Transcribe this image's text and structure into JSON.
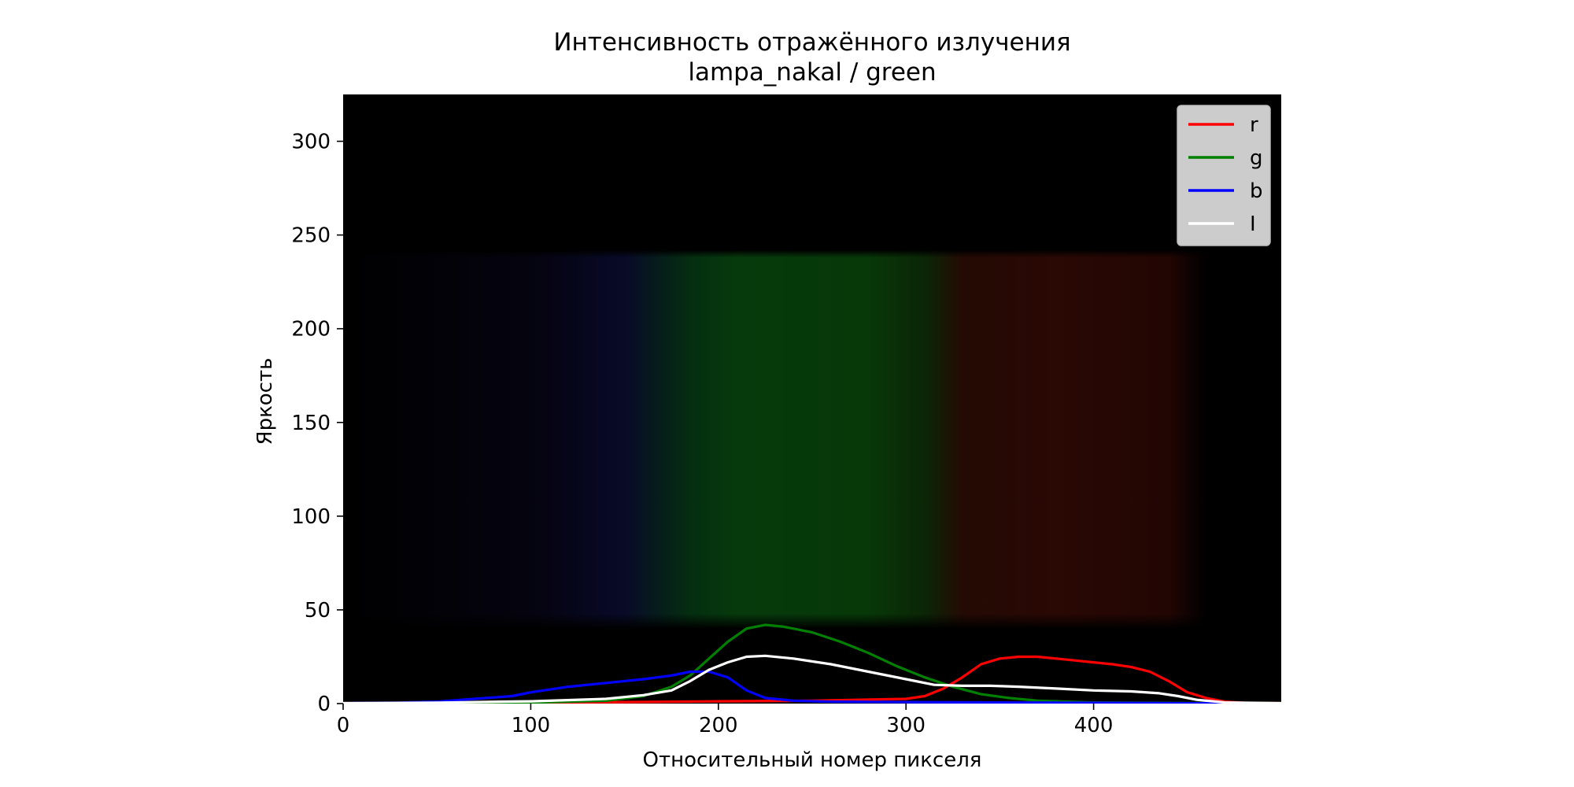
{
  "chart_data": {
    "type": "line",
    "title": "Интенсивность отражённого излучения",
    "subtitle": "lampa_nakal / green",
    "xlabel": "Относительный номер пикселя",
    "ylabel": "Яркость",
    "xlim": [
      0,
      500
    ],
    "ylim": [
      0,
      325
    ],
    "x_ticks": [
      0,
      100,
      200,
      300,
      400
    ],
    "y_ticks": [
      0,
      50,
      100,
      150,
      200,
      250,
      300
    ],
    "grid": false,
    "legend_position": "top-right",
    "background": {
      "type": "spectrum-image",
      "band_y_range": [
        40,
        242
      ],
      "color_stops": [
        {
          "x": 0,
          "color": "#000000"
        },
        {
          "x": 100,
          "color": "#05030f"
        },
        {
          "x": 150,
          "color": "#080a28"
        },
        {
          "x": 185,
          "color": "#042e10"
        },
        {
          "x": 210,
          "color": "#063a0c"
        },
        {
          "x": 280,
          "color": "#073808"
        },
        {
          "x": 310,
          "color": "#0b2606"
        },
        {
          "x": 330,
          "color": "#240a04"
        },
        {
          "x": 380,
          "color": "#2a0804"
        },
        {
          "x": 440,
          "color": "#220603"
        },
        {
          "x": 460,
          "color": "#000000"
        },
        {
          "x": 500,
          "color": "#000000"
        }
      ]
    },
    "series": [
      {
        "name": "r",
        "color": "#ff0000",
        "points": [
          [
            0,
            0.3
          ],
          [
            50,
            0.4
          ],
          [
            100,
            0.5
          ],
          [
            150,
            0.8
          ],
          [
            175,
            1
          ],
          [
            200,
            1.2
          ],
          [
            250,
            1.5
          ],
          [
            300,
            2.5
          ],
          [
            310,
            4
          ],
          [
            320,
            8
          ],
          [
            330,
            14
          ],
          [
            340,
            21
          ],
          [
            350,
            24
          ],
          [
            360,
            25
          ],
          [
            370,
            25
          ],
          [
            380,
            24
          ],
          [
            390,
            23
          ],
          [
            400,
            22
          ],
          [
            410,
            21
          ],
          [
            420,
            19.5
          ],
          [
            430,
            17
          ],
          [
            440,
            12
          ],
          [
            450,
            6
          ],
          [
            460,
            3
          ],
          [
            470,
            1
          ],
          [
            480,
            0.4
          ],
          [
            500,
            0.3
          ]
        ]
      },
      {
        "name": "g",
        "color": "#008000",
        "points": [
          [
            0,
            0.2
          ],
          [
            100,
            0.5
          ],
          [
            140,
            1.5
          ],
          [
            160,
            4
          ],
          [
            175,
            9
          ],
          [
            185,
            15
          ],
          [
            195,
            24
          ],
          [
            205,
            33
          ],
          [
            215,
            40
          ],
          [
            225,
            42
          ],
          [
            235,
            41
          ],
          [
            250,
            38
          ],
          [
            265,
            33
          ],
          [
            280,
            27
          ],
          [
            295,
            20
          ],
          [
            310,
            14
          ],
          [
            325,
            9
          ],
          [
            340,
            5
          ],
          [
            355,
            3
          ],
          [
            370,
            1.5
          ],
          [
            400,
            0.6
          ],
          [
            450,
            0.3
          ],
          [
            500,
            0.2
          ]
        ]
      },
      {
        "name": "b",
        "color": "#0000ff",
        "points": [
          [
            0,
            0.2
          ],
          [
            30,
            0.5
          ],
          [
            50,
            1
          ],
          [
            70,
            2.5
          ],
          [
            90,
            4
          ],
          [
            100,
            6
          ],
          [
            120,
            9
          ],
          [
            140,
            11
          ],
          [
            160,
            13
          ],
          [
            175,
            15
          ],
          [
            185,
            17
          ],
          [
            195,
            17
          ],
          [
            205,
            14
          ],
          [
            215,
            7
          ],
          [
            225,
            3
          ],
          [
            240,
            1.5
          ],
          [
            260,
            1
          ],
          [
            300,
            0.8
          ],
          [
            350,
            0.6
          ],
          [
            400,
            0.4
          ],
          [
            450,
            0.2
          ],
          [
            500,
            0.1
          ]
        ]
      },
      {
        "name": "I",
        "color": "#ffffff",
        "points": [
          [
            0,
            0.2
          ],
          [
            50,
            0.5
          ],
          [
            100,
            1.2
          ],
          [
            140,
            2.5
          ],
          [
            160,
            4.5
          ],
          [
            175,
            7
          ],
          [
            185,
            12
          ],
          [
            195,
            18
          ],
          [
            205,
            22
          ],
          [
            215,
            25
          ],
          [
            225,
            25.5
          ],
          [
            240,
            24
          ],
          [
            260,
            21
          ],
          [
            280,
            17
          ],
          [
            300,
            13
          ],
          [
            315,
            10
          ],
          [
            330,
            9.5
          ],
          [
            345,
            9.5
          ],
          [
            360,
            9
          ],
          [
            380,
            8
          ],
          [
            400,
            7
          ],
          [
            420,
            6.5
          ],
          [
            435,
            5.5
          ],
          [
            445,
            4
          ],
          [
            455,
            2
          ],
          [
            470,
            0.6
          ],
          [
            500,
            0.2
          ]
        ]
      }
    ]
  }
}
